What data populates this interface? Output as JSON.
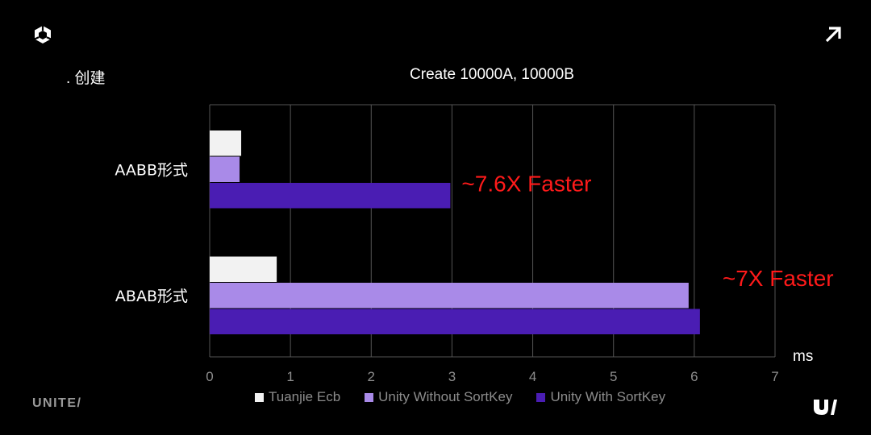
{
  "section_label": ". 创建",
  "brand": "UNITE/",
  "icons": {
    "logo": "unity-cube-logo-icon",
    "corner": "arrow-up-right-icon",
    "footer": "u-logo-icon"
  },
  "chart_data": {
    "type": "bar",
    "orientation": "horizontal",
    "title": "Create 10000A, 10000B",
    "xlabel": "ms",
    "ylabel": "",
    "xlim": [
      0,
      7
    ],
    "xticks": [
      0,
      1,
      2,
      3,
      4,
      5,
      6,
      7
    ],
    "grid": true,
    "legend_position": "bottom",
    "categories": [
      "AABB形式",
      "ABAB形式"
    ],
    "series": [
      {
        "name": "Tuanjie Ecb",
        "color": "#f2f2f2",
        "values": [
          0.39,
          0.83
        ]
      },
      {
        "name": "Unity Without SortKey",
        "color": "#a98ae8",
        "values": [
          0.37,
          5.93
        ]
      },
      {
        "name": "Unity With SortKey",
        "color": "#4a1db3",
        "values": [
          2.98,
          6.07
        ]
      }
    ],
    "annotations": [
      {
        "text": "~7.6X Faster",
        "category": "AABB形式",
        "color": "#ff1a1a"
      },
      {
        "text": "~7X Faster",
        "category": "ABAB形式",
        "color": "#ff1a1a"
      }
    ]
  }
}
